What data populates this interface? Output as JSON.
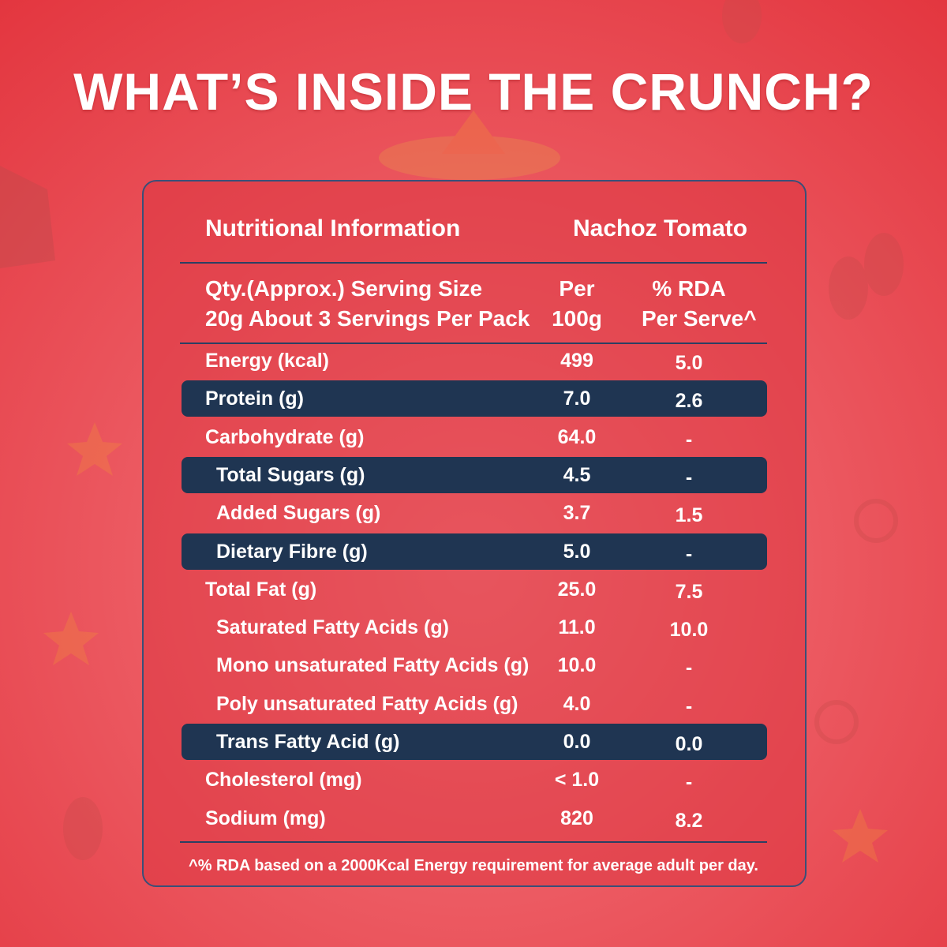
{
  "header": {
    "title": "WHAT’S INSIDE THE CRUNCH?"
  },
  "table": {
    "heading": "Nutritional Information",
    "product": "Nachoz Tomato",
    "serving": [
      "Qty.(Approx.) Serving Size",
      "20g About 3 Servings Per Pack"
    ],
    "col_per": [
      "Per",
      "100g"
    ],
    "col_rda": [
      "% RDA",
      "Per Serve^"
    ],
    "rows": [
      [
        "Energy (kcal)",
        "499",
        "5.0"
      ],
      [
        "Protein (g)",
        "7.0",
        "2.6"
      ],
      [
        "Carbohydrate (g)",
        "64.0",
        "-"
      ],
      [
        "Total Sugars (g)",
        "4.5",
        "-"
      ],
      [
        "Added Sugars (g)",
        "3.7",
        "1.5"
      ],
      [
        "Dietary Fibre (g)",
        "5.0",
        "-"
      ],
      [
        "Total Fat (g)",
        "25.0",
        "7.5"
      ],
      [
        "Saturated Fatty Acids (g)",
        "11.0",
        "10.0"
      ],
      [
        "Mono unsaturated Fatty Acids (g)",
        "10.0",
        "-"
      ],
      [
        "Poly unsaturated Fatty Acids (g)",
        "4.0",
        "-"
      ],
      [
        "Trans Fatty Acid (g)",
        "0.0",
        "0.0"
      ],
      [
        "Cholesterol (mg)",
        "< 1.0",
        "-"
      ],
      [
        "Sodium (mg)",
        "820",
        "8.2"
      ]
    ],
    "footnote": "^% RDA based on a 2000Kcal Energy requirement for average adult per day."
  }
}
